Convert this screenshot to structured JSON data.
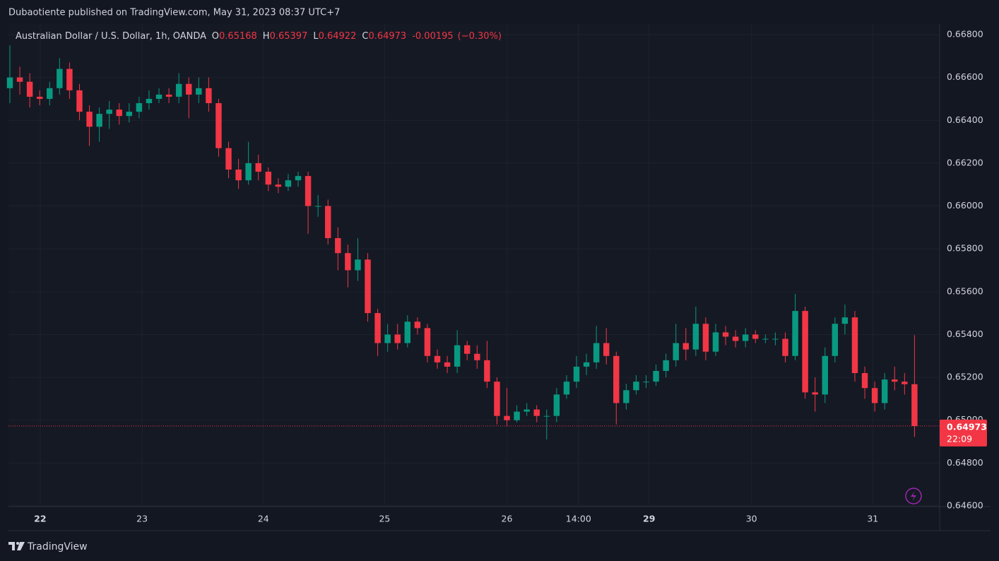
{
  "header": {
    "published": "Dubaotiente published on TradingView.com, May 31, 2023 08:37 UTC+7"
  },
  "footer": {
    "brand": "TradingView"
  },
  "chart_data": {
    "type": "candlestick",
    "title": "Australian Dollar / U.S. Dollar, 1h, OANDA",
    "ohlc_legend": [
      {
        "label": "O",
        "value": 0.65168
      },
      {
        "label": "H",
        "value": 0.65397
      },
      {
        "label": "L",
        "value": 0.64922
      },
      {
        "label": "C",
        "value": 0.64973
      }
    ],
    "change": -0.00195,
    "change_percent_label": "(−0.30%)",
    "countdown": "22:09",
    "up_color": "#089981",
    "down_color": "#f23645",
    "grid": true,
    "xlim": [
      -0.14,
      93.53
    ],
    "xticks": [
      {
        "value": 3.05,
        "label": "22"
      },
      {
        "value": 13.3,
        "label": "23"
      },
      {
        "value": 25.5,
        "label": "24"
      },
      {
        "value": 37.7,
        "label": "25"
      },
      {
        "value": 50.0,
        "label": "26"
      },
      {
        "value": 57.2,
        "label": "14:00"
      },
      {
        "value": 64.3,
        "label": "29"
      },
      {
        "value": 74.6,
        "label": "30"
      },
      {
        "value": 86.8,
        "label": "31"
      }
    ],
    "ylim": [
      0.646,
      0.668
    ],
    "yticks": [
      {
        "value": 0.668,
        "label": "0.66800"
      },
      {
        "value": 0.666,
        "label": "0.66600"
      },
      {
        "value": 0.664,
        "label": "0.66400"
      },
      {
        "value": 0.662,
        "label": "0.66200"
      },
      {
        "value": 0.66,
        "label": "0.66000"
      },
      {
        "value": 0.658,
        "label": "0.65800"
      },
      {
        "value": 0.656,
        "label": "0.65600"
      },
      {
        "value": 0.654,
        "label": "0.65400"
      },
      {
        "value": 0.652,
        "label": "0.65200"
      },
      {
        "value": 0.65,
        "label": "0.65000"
      },
      {
        "value": 0.648,
        "label": "0.64800"
      },
      {
        "value": 0.646,
        "label": "0.64600"
      }
    ],
    "open": [
      0.6655,
      0.666,
      0.6658,
      0.6651,
      0.665,
      0.6655,
      0.6664,
      0.6654,
      0.6644,
      0.6637,
      0.6643,
      0.6645,
      0.6642,
      0.6644,
      0.6648,
      0.665,
      0.6652,
      0.6651,
      0.6657,
      0.6652,
      0.6655,
      0.6648,
      0.6627,
      0.6617,
      0.6612,
      0.662,
      0.6616,
      0.661,
      0.6609,
      0.6612,
      0.6614,
      0.66,
      0.66,
      0.6585,
      0.6578,
      0.657,
      0.6575,
      0.655,
      0.6536,
      0.654,
      0.6536,
      0.6546,
      0.6543,
      0.653,
      0.6527,
      0.6525,
      0.6535,
      0.6531,
      0.6528,
      0.6518,
      0.6502,
      0.65,
      0.6504,
      0.6505,
      0.6502,
      0.6502,
      0.6512,
      0.6518,
      0.6525,
      0.6527,
      0.6536,
      0.653,
      0.6508,
      0.6514,
      0.6518,
      0.6518,
      0.6523,
      0.6528,
      0.6536,
      0.6533,
      0.6545,
      0.6532,
      0.6541,
      0.6539,
      0.6537,
      0.654,
      0.6538,
      0.6538,
      0.6538,
      0.653,
      0.6551,
      0.6513,
      0.6512,
      0.653,
      0.6545,
      0.6548,
      0.6522,
      0.6515,
      0.6508,
      0.6519,
      0.6518,
      0.65168
    ],
    "high": [
      0.6675,
      0.6665,
      0.6662,
      0.6654,
      0.6658,
      0.6669,
      0.6667,
      0.6657,
      0.6647,
      0.6646,
      0.6649,
      0.6648,
      0.6648,
      0.6651,
      0.6654,
      0.6655,
      0.6655,
      0.6662,
      0.666,
      0.666,
      0.666,
      0.665,
      0.663,
      0.6622,
      0.663,
      0.6624,
      0.6618,
      0.6613,
      0.6615,
      0.6616,
      0.6616,
      0.6605,
      0.6603,
      0.659,
      0.6582,
      0.6585,
      0.6578,
      0.6552,
      0.6545,
      0.6545,
      0.6549,
      0.6548,
      0.6545,
      0.6533,
      0.653,
      0.6542,
      0.6537,
      0.6535,
      0.6537,
      0.652,
      0.6515,
      0.6507,
      0.6508,
      0.6507,
      0.6505,
      0.6515,
      0.6521,
      0.653,
      0.6531,
      0.6544,
      0.6543,
      0.6532,
      0.6517,
      0.6521,
      0.6521,
      0.6526,
      0.6531,
      0.6545,
      0.6543,
      0.6553,
      0.6548,
      0.6545,
      0.6544,
      0.6542,
      0.6543,
      0.6542,
      0.654,
      0.6541,
      0.6541,
      0.6559,
      0.6553,
      0.652,
      0.6534,
      0.6548,
      0.6554,
      0.6551,
      0.6525,
      0.6518,
      0.6522,
      0.6525,
      0.6522,
      0.65397
    ],
    "low": [
      0.6648,
      0.6652,
      0.6646,
      0.6647,
      0.6647,
      0.6652,
      0.665,
      0.664,
      0.6628,
      0.663,
      0.6636,
      0.6638,
      0.6639,
      0.6641,
      0.6645,
      0.6648,
      0.6648,
      0.6648,
      0.6641,
      0.6648,
      0.6644,
      0.6623,
      0.6613,
      0.6608,
      0.661,
      0.6612,
      0.6607,
      0.6606,
      0.6607,
      0.6609,
      0.6587,
      0.6595,
      0.6582,
      0.657,
      0.6562,
      0.6565,
      0.6546,
      0.653,
      0.6532,
      0.6533,
      0.6534,
      0.654,
      0.6527,
      0.6524,
      0.6522,
      0.6522,
      0.6528,
      0.6524,
      0.6515,
      0.6498,
      0.6497,
      0.6499,
      0.6502,
      0.6499,
      0.6491,
      0.6499,
      0.651,
      0.6515,
      0.6521,
      0.6524,
      0.6526,
      0.6498,
      0.6505,
      0.6512,
      0.6515,
      0.6516,
      0.652,
      0.6525,
      0.6528,
      0.653,
      0.6528,
      0.653,
      0.6535,
      0.6534,
      0.6534,
      0.6536,
      0.6536,
      0.6535,
      0.6527,
      0.6528,
      0.651,
      0.6504,
      0.6508,
      0.6527,
      0.654,
      0.6518,
      0.651,
      0.6504,
      0.6505,
      0.6514,
      0.6512,
      0.64922
    ],
    "close": [
      0.666,
      0.6658,
      0.6651,
      0.665,
      0.6655,
      0.6664,
      0.6654,
      0.6644,
      0.6637,
      0.6643,
      0.6645,
      0.6642,
      0.6644,
      0.6648,
      0.665,
      0.6652,
      0.6651,
      0.6657,
      0.6652,
      0.6655,
      0.6648,
      0.6627,
      0.6617,
      0.6612,
      0.662,
      0.6616,
      0.661,
      0.6609,
      0.6612,
      0.6614,
      0.66,
      0.66,
      0.6585,
      0.6578,
      0.657,
      0.6575,
      0.655,
      0.6536,
      0.654,
      0.6536,
      0.6546,
      0.6543,
      0.653,
      0.6527,
      0.6525,
      0.6535,
      0.6531,
      0.6528,
      0.6518,
      0.6502,
      0.65,
      0.6504,
      0.6505,
      0.6502,
      0.6502,
      0.6512,
      0.6518,
      0.6525,
      0.6527,
      0.6536,
      0.653,
      0.6508,
      0.6514,
      0.6518,
      0.6518,
      0.6523,
      0.6528,
      0.6536,
      0.6533,
      0.6545,
      0.6532,
      0.6541,
      0.6539,
      0.6537,
      0.654,
      0.6538,
      0.6538,
      0.6538,
      0.653,
      0.6551,
      0.6513,
      0.6512,
      0.653,
      0.6545,
      0.6548,
      0.6522,
      0.6515,
      0.6508,
      0.6519,
      0.6518,
      0.65168,
      0.64973
    ]
  }
}
